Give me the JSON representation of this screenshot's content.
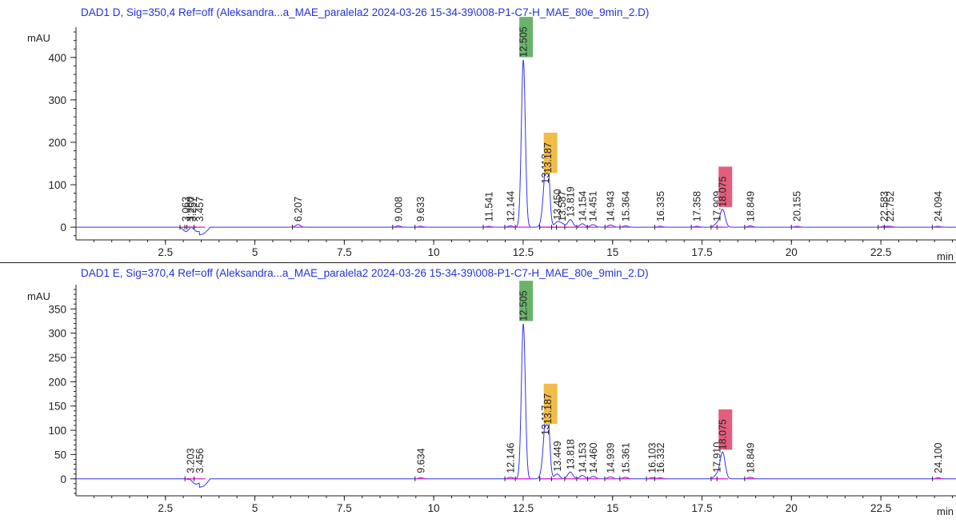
{
  "colors": {
    "trace": "#3333ee",
    "baseline": "#dd33dd",
    "highlight_green": "#6bb36b",
    "highlight_yellow": "#f0bc4a",
    "highlight_red": "#e35d7e",
    "title": "#2233dd"
  },
  "chart_data": [
    {
      "type": "line",
      "title": "DAD1 D, Sig=350,4 Ref=off (Aleksandra...a_MAE_paralela2 2024-03-26 15-34-39\\008-P1-C7-H_MAE_80e_9min_2.D)",
      "xlabel": "min",
      "ylabel": "mAU",
      "xlim": [
        0,
        24.6
      ],
      "ylim": [
        -30,
        460
      ],
      "x_ticks": [
        2.5,
        5,
        7.5,
        10,
        12.5,
        15,
        17.5,
        20,
        22.5
      ],
      "x_tick_labels": [
        "2.5",
        "5",
        "7.5",
        "10",
        "12.5",
        "15",
        "17.5",
        "20",
        "22.5"
      ],
      "y_ticks": [
        0,
        100,
        200,
        300,
        400
      ],
      "y_tick_labels": [
        "0",
        "100",
        "200",
        "300",
        "400"
      ],
      "peaks": [
        {
          "label": "3.063",
          "rt": 3.063,
          "height": -10
        },
        {
          "label": "3.200",
          "rt": 3.2,
          "height": 4
        },
        {
          "label": "3.257",
          "rt": 3.257,
          "height": 6
        },
        {
          "label": "3.457",
          "rt": 3.457,
          "height": 3
        },
        {
          "label": "6.207",
          "rt": 6.207,
          "height": 6
        },
        {
          "label": "9.008",
          "rt": 9.008,
          "height": 3
        },
        {
          "label": "9.633",
          "rt": 9.633,
          "height": 2
        },
        {
          "label": "11.541",
          "rt": 11.541,
          "height": 2
        },
        {
          "label": "12.144",
          "rt": 12.144,
          "height": 3
        },
        {
          "label": "12.505",
          "rt": 12.505,
          "height": 395,
          "highlight": "green"
        },
        {
          "label": "13.118",
          "rt": 13.118,
          "height": 97
        },
        {
          "label": "13.187",
          "rt": 13.187,
          "height": 122,
          "highlight": "yellow"
        },
        {
          "label": "13.450",
          "rt": 13.45,
          "height": 12
        },
        {
          "label": "13.587",
          "rt": 13.587,
          "height": 8
        },
        {
          "label": "13.819",
          "rt": 13.819,
          "height": 18
        },
        {
          "label": "14.154",
          "rt": 14.154,
          "height": 8
        },
        {
          "label": "14.451",
          "rt": 14.451,
          "height": 6
        },
        {
          "label": "14.943",
          "rt": 14.943,
          "height": 5
        },
        {
          "label": "15.364",
          "rt": 15.364,
          "height": 3
        },
        {
          "label": "16.335",
          "rt": 16.335,
          "height": 2
        },
        {
          "label": "17.358",
          "rt": 17.358,
          "height": 2
        },
        {
          "label": "17.909",
          "rt": 17.909,
          "height": 8
        },
        {
          "label": "18.075",
          "rt": 18.075,
          "height": 42,
          "highlight": "red"
        },
        {
          "label": "18.849",
          "rt": 18.849,
          "height": 3
        },
        {
          "label": "20.155",
          "rt": 20.155,
          "height": 2
        },
        {
          "label": "22.583",
          "rt": 22.583,
          "height": 2
        },
        {
          "label": "22.752",
          "rt": 22.752,
          "height": 2
        },
        {
          "label": "24.094",
          "rt": 24.094,
          "height": 2
        }
      ]
    },
    {
      "type": "line",
      "title": "DAD1 E, Sig=370,4 Ref=off (Aleksandra...a_MAE_paralela2 2024-03-26 15-34-39\\008-P1-C7-H_MAE_80e_9min_2.D)",
      "xlabel": "min",
      "ylabel": "mAU",
      "xlim": [
        0,
        24.6
      ],
      "ylim": [
        -35,
        390
      ],
      "x_ticks": [
        2.5,
        5,
        7.5,
        10,
        12.5,
        15,
        17.5,
        20,
        22.5
      ],
      "x_tick_labels": [
        "2.5",
        "5",
        "7.5",
        "10",
        "12.5",
        "15",
        "17.5",
        "20",
        "22.5"
      ],
      "y_ticks": [
        0,
        50,
        100,
        150,
        200,
        250,
        300,
        350
      ],
      "y_tick_labels": [
        "0",
        "50",
        "100",
        "150",
        "200",
        "250",
        "300",
        "350"
      ],
      "peaks": [
        {
          "label": "3.203",
          "rt": 3.203,
          "height": 6
        },
        {
          "label": "3.456",
          "rt": 3.456,
          "height": 4
        },
        {
          "label": "9.634",
          "rt": 9.634,
          "height": 2
        },
        {
          "label": "12.146",
          "rt": 12.146,
          "height": 3
        },
        {
          "label": "12.505",
          "rt": 12.505,
          "height": 320,
          "highlight": "green"
        },
        {
          "label": "13.117",
          "rt": 13.117,
          "height": 85
        },
        {
          "label": "13.187",
          "rt": 13.187,
          "height": 108,
          "highlight": "yellow"
        },
        {
          "label": "13.449",
          "rt": 13.449,
          "height": 10
        },
        {
          "label": "13.818",
          "rt": 13.818,
          "height": 14
        },
        {
          "label": "14.153",
          "rt": 14.153,
          "height": 7
        },
        {
          "label": "14.460",
          "rt": 14.46,
          "height": 5
        },
        {
          "label": "14.939",
          "rt": 14.939,
          "height": 4
        },
        {
          "label": "15.361",
          "rt": 15.361,
          "height": 3
        },
        {
          "label": "16.103",
          "rt": 16.103,
          "height": 2
        },
        {
          "label": "16.332",
          "rt": 16.332,
          "height": 2
        },
        {
          "label": "17.910",
          "rt": 17.91,
          "height": 8
        },
        {
          "label": "18.075",
          "rt": 18.075,
          "height": 55,
          "highlight": "red"
        },
        {
          "label": "18.849",
          "rt": 18.849,
          "height": 3
        },
        {
          "label": "24.100",
          "rt": 24.1,
          "height": 2
        }
      ]
    }
  ]
}
